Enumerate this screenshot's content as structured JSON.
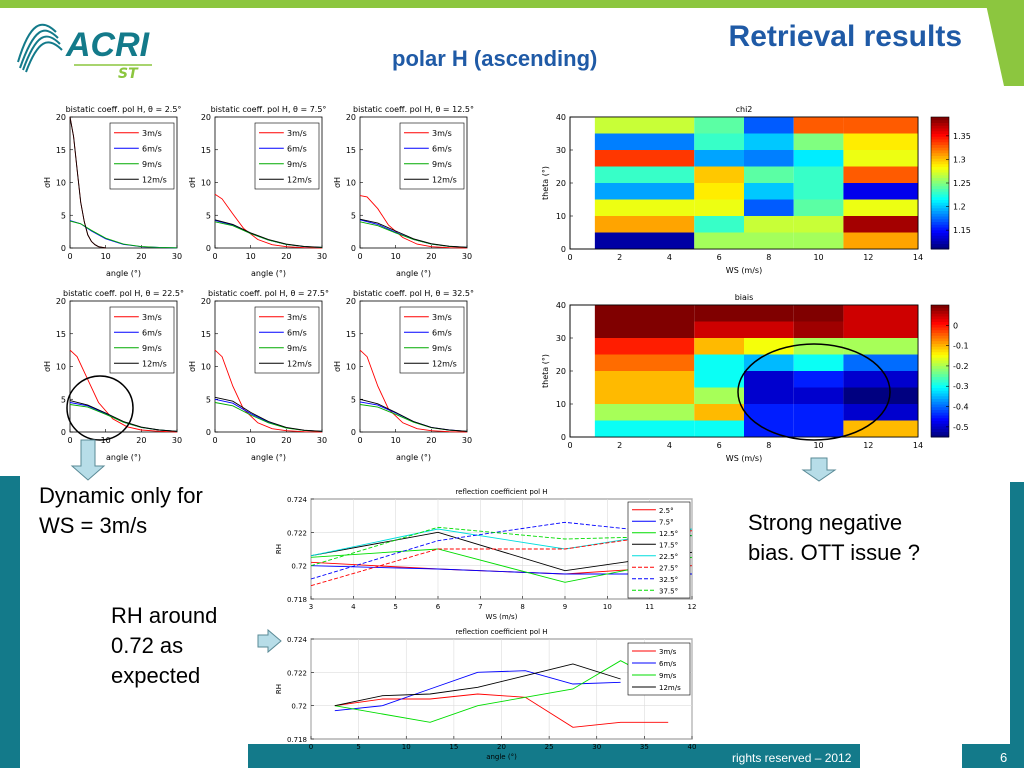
{
  "slide": {
    "title": "Retrieval results",
    "subtitle": "polar H (ascending)",
    "logo_main": "ACRI",
    "logo_sub": "ST",
    "notes": {
      "dynamic_line1": "Dynamic only for",
      "dynamic_line2": "WS = 3m/s",
      "strong_line1": "Strong negative",
      "strong_line2": "bias. OTT issue ?",
      "rh_line1": "RH around",
      "rh_line2": "0.72 as",
      "rh_line3": "expected"
    },
    "footer_rights": "rights reserved – 2012",
    "page_number": "6",
    "colors": {
      "title": "#1f5aa6",
      "green": "#8cc63f",
      "teal": "#137a8a",
      "arrow": "#b7dde8"
    }
  },
  "chart_data": [
    {
      "type": "line",
      "title": "bistatic coeff. pol H, θ = 2.5°",
      "xlabel": "angle (°)",
      "ylabel": "σH",
      "xlim": [
        0,
        30
      ],
      "ylim": [
        0,
        20
      ],
      "xticks": [
        "0",
        "10",
        "20",
        "30"
      ],
      "yticks": [
        "0",
        "5",
        "10",
        "15",
        "20"
      ],
      "series": [
        {
          "name": "3m/s",
          "color": "#ff0000",
          "x": [
            0,
            1,
            2,
            3,
            4,
            5,
            6,
            7,
            8,
            10
          ],
          "values": [
            20,
            17,
            12,
            7,
            4,
            2,
            1,
            0.5,
            0.2,
            0
          ]
        },
        {
          "name": "6m/s",
          "color": "#0000ff",
          "x": [
            0,
            3,
            6,
            10,
            15,
            20,
            25,
            30
          ],
          "values": [
            4.2,
            3.7,
            2.6,
            1.4,
            0.55,
            0.2,
            0.08,
            0.03
          ]
        },
        {
          "name": "9m/s",
          "color": "#00aa00",
          "x": [
            0,
            3,
            6,
            10,
            15,
            20,
            25,
            30
          ],
          "values": [
            4.1,
            3.7,
            2.7,
            1.5,
            0.6,
            0.22,
            0.09,
            0.03
          ]
        },
        {
          "name": "12m/s",
          "color": "#000000",
          "x": [
            0,
            1,
            2,
            3,
            4,
            5,
            6,
            7,
            8,
            10
          ],
          "values": [
            20,
            17,
            12,
            7,
            4,
            2,
            1,
            0.5,
            0.2,
            0
          ]
        }
      ]
    },
    {
      "type": "line",
      "title": "bistatic coeff. pol H, θ = 7.5°",
      "xlabel": "angle (°)",
      "ylabel": "σH",
      "xlim": [
        0,
        30
      ],
      "ylim": [
        0,
        20
      ],
      "xticks": [
        "0",
        "10",
        "20",
        "30"
      ],
      "yticks": [
        "0",
        "5",
        "10",
        "15",
        "20"
      ],
      "series": [
        {
          "name": "3m/s",
          "color": "#ff0000",
          "x": [
            0,
            2,
            5,
            8,
            12,
            16,
            20,
            25,
            30
          ],
          "values": [
            8.2,
            7.5,
            5.2,
            3,
            1.3,
            0.5,
            0.2,
            0.05,
            0
          ]
        },
        {
          "name": "6m/s",
          "color": "#0000ff",
          "x": [
            0,
            5,
            10,
            15,
            20,
            25,
            30
          ],
          "values": [
            4.2,
            3.5,
            2.2,
            1.2,
            0.55,
            0.2,
            0.08
          ]
        },
        {
          "name": "9m/s",
          "color": "#00aa00",
          "x": [
            0,
            5,
            10,
            15,
            20,
            25,
            30
          ],
          "values": [
            4.0,
            3.4,
            2.2,
            1.2,
            0.55,
            0.22,
            0.08
          ]
        },
        {
          "name": "12m/s",
          "color": "#000000",
          "x": [
            0,
            5,
            10,
            15,
            20,
            25,
            30
          ],
          "values": [
            4.3,
            3.6,
            2.3,
            1.3,
            0.6,
            0.25,
            0.1
          ]
        }
      ]
    },
    {
      "type": "line",
      "title": "bistatic coeff. pol H, θ = 12.5°",
      "xlabel": "angle (°)",
      "ylabel": "σH",
      "xlim": [
        0,
        30
      ],
      "ylim": [
        0,
        20
      ],
      "xticks": [
        "0",
        "10",
        "20",
        "30"
      ],
      "yticks": [
        "0",
        "5",
        "10",
        "15",
        "20"
      ],
      "series": [
        {
          "name": "3m/s",
          "color": "#ff0000",
          "x": [
            0,
            2,
            5,
            8,
            12,
            16,
            20,
            25,
            30
          ],
          "values": [
            8,
            7.8,
            6,
            3.5,
            1.6,
            0.6,
            0.2,
            0.05,
            0
          ]
        },
        {
          "name": "6m/s",
          "color": "#0000ff",
          "x": [
            0,
            5,
            10,
            15,
            20,
            25,
            30
          ],
          "values": [
            4.3,
            3.6,
            2.4,
            1.3,
            0.6,
            0.25,
            0.1
          ]
        },
        {
          "name": "9m/s",
          "color": "#00aa00",
          "x": [
            0,
            5,
            10,
            15,
            20,
            25,
            30
          ],
          "values": [
            4.0,
            3.4,
            2.3,
            1.3,
            0.6,
            0.25,
            0.1
          ]
        },
        {
          "name": "12m/s",
          "color": "#000000",
          "x": [
            0,
            5,
            10,
            15,
            20,
            25,
            30
          ],
          "values": [
            4.4,
            3.8,
            2.6,
            1.4,
            0.65,
            0.28,
            0.1
          ]
        }
      ]
    },
    {
      "type": "line",
      "title": "bistatic coeff. pol H, θ = 22.5°",
      "xlabel": "angle (°)",
      "ylabel": "σH",
      "xlim": [
        0,
        30
      ],
      "ylim": [
        0,
        20
      ],
      "xticks": [
        "0",
        "10",
        "20",
        "30"
      ],
      "yticks": [
        "0",
        "5",
        "10",
        "15",
        "20"
      ],
      "series": [
        {
          "name": "3m/s",
          "color": "#ff0000",
          "x": [
            0,
            2,
            5,
            8,
            12,
            16,
            20,
            25,
            30
          ],
          "values": [
            12.5,
            11.5,
            8,
            4.5,
            2,
            0.8,
            0.3,
            0.1,
            0
          ]
        },
        {
          "name": "6m/s",
          "color": "#0000ff",
          "x": [
            0,
            5,
            10,
            15,
            20,
            25,
            30
          ],
          "values": [
            4.5,
            4.0,
            2.8,
            1.5,
            0.7,
            0.3,
            0.1
          ]
        },
        {
          "name": "9m/s",
          "color": "#00aa00",
          "x": [
            0,
            5,
            10,
            15,
            20,
            25,
            30
          ],
          "values": [
            4.2,
            3.8,
            2.7,
            1.5,
            0.7,
            0.3,
            0.1
          ]
        },
        {
          "name": "12m/s",
          "color": "#000000",
          "x": [
            0,
            5,
            10,
            15,
            20,
            25,
            30
          ],
          "values": [
            4.8,
            4.1,
            2.9,
            1.6,
            0.75,
            0.3,
            0.1
          ]
        }
      ]
    },
    {
      "type": "line",
      "title": "bistatic coeff. pol H, θ = 27.5°",
      "xlabel": "angle (°)",
      "ylabel": "σH",
      "xlim": [
        0,
        30
      ],
      "ylim": [
        0,
        20
      ],
      "xticks": [
        "0",
        "10",
        "20",
        "30"
      ],
      "yticks": [
        "0",
        "5",
        "10",
        "15",
        "20"
      ],
      "series": [
        {
          "name": "3m/s",
          "color": "#ff0000",
          "x": [
            0,
            2,
            5,
            8,
            12,
            16,
            20,
            25,
            30
          ],
          "values": [
            12.5,
            11.5,
            7,
            3.5,
            1.4,
            0.5,
            0.2,
            0.05,
            0
          ]
        },
        {
          "name": "6m/s",
          "color": "#0000ff",
          "x": [
            0,
            5,
            10,
            15,
            20,
            25,
            30
          ],
          "values": [
            5.0,
            4.4,
            2.8,
            1.5,
            0.65,
            0.25,
            0.1
          ]
        },
        {
          "name": "9m/s",
          "color": "#00aa00",
          "x": [
            0,
            5,
            10,
            15,
            20,
            25,
            30
          ],
          "values": [
            4.5,
            4.0,
            2.6,
            1.4,
            0.6,
            0.25,
            0.1
          ]
        },
        {
          "name": "12m/s",
          "color": "#000000",
          "x": [
            0,
            5,
            10,
            15,
            20,
            25,
            30
          ],
          "values": [
            5.3,
            4.7,
            3.0,
            1.6,
            0.7,
            0.28,
            0.1
          ]
        }
      ]
    },
    {
      "type": "line",
      "title": "bistatic coeff. pol H, θ = 32.5°",
      "xlabel": "angle (°)",
      "ylabel": "σH",
      "xlim": [
        0,
        30
      ],
      "ylim": [
        0,
        20
      ],
      "xticks": [
        "0",
        "10",
        "20",
        "30"
      ],
      "yticks": [
        "0",
        "5",
        "10",
        "15",
        "20"
      ],
      "series": [
        {
          "name": "3m/s",
          "color": "#ff0000",
          "x": [
            0,
            2,
            5,
            8,
            12,
            16,
            20,
            25,
            30
          ],
          "values": [
            12.5,
            11.5,
            7,
            3.5,
            1.4,
            0.5,
            0.2,
            0.05,
            0
          ]
        },
        {
          "name": "6m/s",
          "color": "#0000ff",
          "x": [
            0,
            5,
            10,
            15,
            20,
            25,
            30
          ],
          "values": [
            4.6,
            4.1,
            2.9,
            1.6,
            0.7,
            0.3,
            0.1
          ]
        },
        {
          "name": "9m/s",
          "color": "#00aa00",
          "x": [
            0,
            5,
            10,
            15,
            20,
            25,
            30
          ],
          "values": [
            4.2,
            3.8,
            2.7,
            1.5,
            0.65,
            0.28,
            0.1
          ]
        },
        {
          "name": "12m/s",
          "color": "#000000",
          "x": [
            0,
            5,
            10,
            15,
            20,
            25,
            30
          ],
          "values": [
            5.0,
            4.3,
            3.0,
            1.6,
            0.7,
            0.3,
            0.1
          ]
        }
      ]
    },
    {
      "type": "heatmap",
      "title": "chi2",
      "xlabel": "WS (m/s)",
      "ylabel": "theta (°)",
      "xlim": [
        0,
        14
      ],
      "ylim": [
        0,
        40
      ],
      "xticks": [
        "0",
        "2",
        "4",
        "6",
        "8",
        "10",
        "12",
        "14"
      ],
      "yticks": [
        "0",
        "10",
        "20",
        "30",
        "40"
      ],
      "x_edges": [
        1,
        5,
        7,
        9,
        11,
        14
      ],
      "y_edges": [
        0,
        5,
        10,
        15,
        20,
        25,
        30,
        35,
        40
      ],
      "rows_bottom_to_top": [
        [
          1.12,
          1.26,
          1.26,
          1.26,
          1.31
        ],
        [
          1.31,
          1.23,
          1.27,
          1.27,
          1.38
        ],
        [
          1.28,
          1.28,
          1.17,
          1.24,
          1.28
        ],
        [
          1.19,
          1.29,
          1.2,
          1.23,
          1.14
        ],
        [
          1.23,
          1.3,
          1.24,
          1.23,
          1.33
        ],
        [
          1.34,
          1.19,
          1.18,
          1.21,
          1.28
        ],
        [
          1.18,
          1.23,
          1.2,
          1.25,
          1.29
        ],
        [
          1.27,
          1.24,
          1.17,
          1.33,
          1.33
        ]
      ],
      "colorbar": {
        "min": 1.11,
        "max": 1.39,
        "ticks": [
          "1.15",
          "1.2",
          "1.25",
          "1.3",
          "1.35"
        ]
      }
    },
    {
      "type": "heatmap",
      "title": "biais",
      "xlabel": "WS (m/s)",
      "ylabel": "theta (°)",
      "xlim": [
        0,
        14
      ],
      "ylim": [
        0,
        40
      ],
      "xticks": [
        "0",
        "2",
        "4",
        "6",
        "8",
        "10",
        "12",
        "14"
      ],
      "yticks": [
        "0",
        "10",
        "20",
        "30",
        "40"
      ],
      "x_edges": [
        1,
        5,
        7,
        9,
        11,
        14
      ],
      "y_edges": [
        0,
        5,
        10,
        15,
        20,
        25,
        30,
        35,
        40
      ],
      "rows_bottom_to_top": [
        [
          -0.3,
          -0.3,
          -0.45,
          -0.45,
          -0.1
        ],
        [
          -0.2,
          -0.1,
          -0.45,
          -0.45,
          -0.5
        ],
        [
          -0.1,
          -0.2,
          -0.5,
          -0.5,
          -0.6
        ],
        [
          -0.1,
          -0.3,
          -0.5,
          -0.45,
          -0.5
        ],
        [
          -0.05,
          -0.3,
          -0.35,
          -0.3,
          -0.4
        ],
        [
          0.0,
          -0.1,
          -0.15,
          -0.2,
          -0.2
        ],
        [
          0.1,
          0.05,
          0.05,
          0.08,
          0.05
        ],
        [
          0.15,
          0.15,
          0.15,
          0.15,
          0.05
        ]
      ],
      "colorbar": {
        "min": -0.55,
        "max": 0.1,
        "ticks": [
          "-0.5",
          "-0.4",
          "-0.3",
          "-0.2",
          "-0.1",
          "0"
        ]
      }
    },
    {
      "type": "line",
      "title": "reflection coefficient pol H",
      "xlabel": "WS (m/s)",
      "ylabel": "RH",
      "xlim": [
        3,
        12
      ],
      "ylim": [
        0.718,
        0.724
      ],
      "xticks": [
        "3",
        "4",
        "5",
        "6",
        "7",
        "8",
        "9",
        "10",
        "11",
        "12"
      ],
      "yticks": [
        "0.718",
        "0.72",
        "0.722",
        "0.724"
      ],
      "x": [
        3,
        6,
        9,
        12
      ],
      "series": [
        {
          "name": "2.5°",
          "color": "#ff0000",
          "dash": false,
          "values": [
            0.7202,
            0.7198,
            0.7195,
            0.72
          ]
        },
        {
          "name": "7.5°",
          "color": "#0000ff",
          "dash": false,
          "values": [
            0.72,
            0.7198,
            0.7195,
            0.7195
          ]
        },
        {
          "name": "12.5°",
          "color": "#00dd00",
          "dash": false,
          "values": [
            0.7205,
            0.721,
            0.719,
            0.7205
          ]
        },
        {
          "name": "17.5°",
          "color": "#000000",
          "dash": false,
          "values": [
            0.7206,
            0.722,
            0.7197,
            0.7208
          ]
        },
        {
          "name": "22.5°",
          "color": "#00dddd",
          "dash": false,
          "values": [
            0.7206,
            0.7222,
            0.721,
            0.7222
          ]
        },
        {
          "name": "27.5°",
          "color": "#ff0000",
          "dash": true,
          "values": [
            0.7188,
            0.721,
            0.721,
            0.7221
          ]
        },
        {
          "name": "32.5°",
          "color": "#0000ff",
          "dash": true,
          "values": [
            0.7192,
            0.7215,
            0.7226,
            0.7218
          ]
        },
        {
          "name": "37.5°",
          "color": "#00dd00",
          "dash": true,
          "values": [
            0.72,
            0.7223,
            0.7216,
            0.7218
          ]
        }
      ]
    },
    {
      "type": "line",
      "title": "reflection coefficient pol H",
      "xlabel": "angle (°)",
      "ylabel": "RH",
      "xlim": [
        0,
        40
      ],
      "ylim": [
        0.718,
        0.724
      ],
      "xticks": [
        "0",
        "5",
        "10",
        "15",
        "20",
        "25",
        "30",
        "35",
        "40"
      ],
      "yticks": [
        "0.718",
        "0.72",
        "0.722",
        "0.724"
      ],
      "x": [
        2.5,
        7.5,
        12.5,
        17.5,
        22.5,
        27.5,
        32.5,
        37.5
      ],
      "series": [
        {
          "name": "3m/s",
          "color": "#ff0000",
          "values": [
            0.72,
            0.7204,
            0.7204,
            0.7207,
            0.7205,
            0.7187,
            0.719,
            0.719
          ]
        },
        {
          "name": "6m/s",
          "color": "#0000ff",
          "values": [
            0.7197,
            0.72,
            0.721,
            0.722,
            0.7221,
            0.7213,
            0.7214,
            null
          ]
        },
        {
          "name": "9m/s",
          "color": "#00dd00",
          "values": [
            0.72,
            0.7195,
            0.719,
            0.72,
            0.7205,
            0.721,
            0.7227,
            0.7212
          ]
        },
        {
          "name": "12m/s",
          "color": "#000000",
          "values": [
            0.72,
            0.7206,
            0.7207,
            0.7211,
            0.7218,
            0.7225,
            0.7216,
            null
          ]
        }
      ]
    }
  ]
}
